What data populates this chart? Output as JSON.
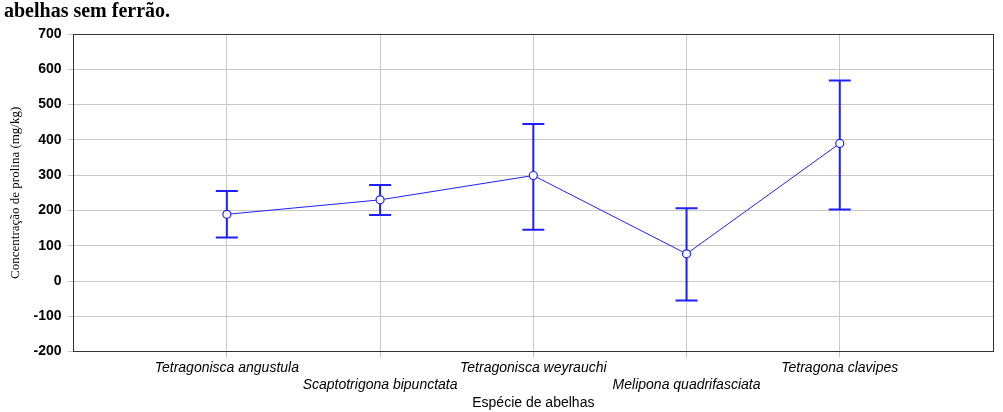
{
  "chart_data": {
    "type": "line",
    "title": "abelhas sem ferrão.",
    "xlabel": "Espécie de abelhas",
    "ylabel": "Concentração de prolina (mg/kg)",
    "categories": [
      "Tetragonisca angustula",
      "Scaptotrigona bipunctata",
      "Tetragonisca weyrauchi",
      "Melipona quadrifasciata",
      "Tetragona clavipes"
    ],
    "series": [
      {
        "color": "#2020ff",
        "values": [
          189,
          230,
          299,
          77,
          390
        ],
        "errors": [
          [
            123,
            255
          ],
          [
            187,
            272
          ],
          [
            145,
            445
          ],
          [
            -55,
            206
          ],
          [
            203,
            568
          ]
        ]
      }
    ],
    "ylim": [
      -200,
      700
    ],
    "yticks": [
      -200,
      -100,
      0,
      100,
      200,
      300,
      400,
      500,
      600,
      700
    ],
    "grid": true,
    "marker": "circle",
    "line_style": "solid",
    "legend": false
  }
}
